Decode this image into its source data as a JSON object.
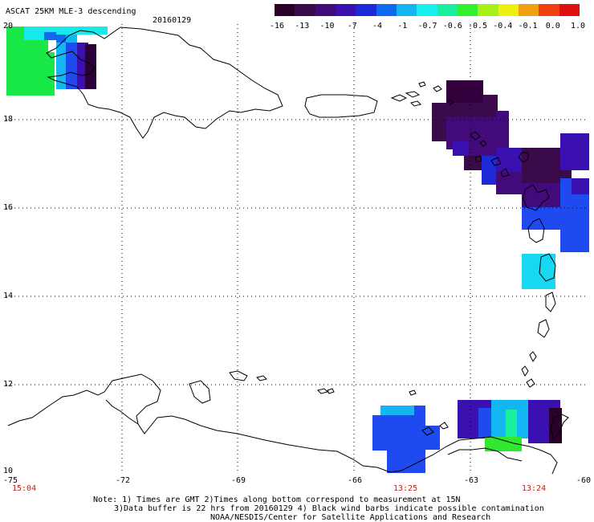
{
  "header": {
    "title": "ASCAT 25KM MLE-3 descending",
    "date": "20160129"
  },
  "colorbar": {
    "labels": [
      "-16",
      "-13",
      "-10",
      "-7",
      "-4",
      "-1",
      "-0.7",
      "-0.6",
      "-0.5",
      "-0.4",
      "-0.1",
      "0.0",
      "1.0"
    ],
    "colors": [
      "#2a0028",
      "#3b0a4a",
      "#420a7a",
      "#3a10b0",
      "#1e2ad8",
      "#0f6af0",
      "#14b6f2",
      "#17f0ee",
      "#18f0a0",
      "#30f030",
      "#a8f018",
      "#f0f010",
      "#f0a010",
      "#f04010",
      "#e01010"
    ]
  },
  "axes": {
    "lat_labels": [
      "20",
      "18",
      "16",
      "14",
      "12",
      "10"
    ],
    "lon_labels": [
      "-75",
      "-72",
      "-69",
      "-66",
      "-63",
      "-60"
    ]
  },
  "times": [
    "15:04",
    "13:25",
    "13:24"
  ],
  "notes": {
    "line1": "Note: 1) Times are GMT 2)Times along bottom correspond to measurement at 15N",
    "line2": "3)Data buffer is 22 hrs from 20160129 4) Black wind barbs indicate possible contamination",
    "line3": "NOAA/NESDIS/Center for Satellite Applications and Research"
  }
}
